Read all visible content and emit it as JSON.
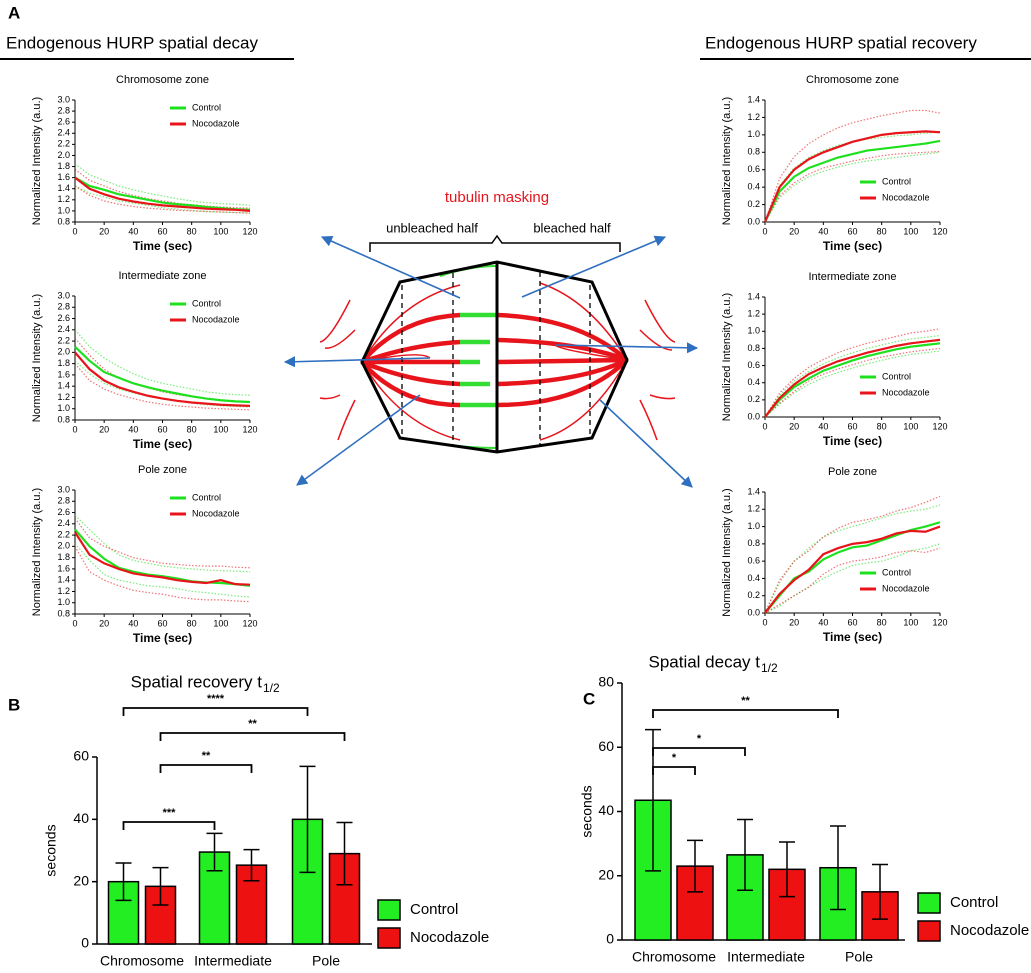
{
  "figure": {
    "panels": [
      "A",
      "B",
      "C"
    ],
    "headers": [
      "Endogenous HURP spatial decay",
      "Endogenous HURP spatial recovery"
    ],
    "diagram": {
      "title": "tubulin masking",
      "left": "unbleached half",
      "right": "bleached half"
    }
  },
  "chart_data": [
    {
      "type": "line",
      "title": "Chromosome zone",
      "xlabel": "Time (sec)",
      "ylabel": "Normalized Intensity (a.u.)",
      "legend": "upper right",
      "xlim": [
        0,
        120
      ],
      "xticks": [
        0,
        20,
        40,
        60,
        80,
        100,
        120
      ],
      "ylim": [
        0.8,
        3.0
      ],
      "yticks": [
        0.8,
        {
          "value": 1.0,
          "label": "1.0"
        },
        1.2,
        1.4,
        1.6,
        1.8,
        {
          "value": 2.0,
          "label": "2.0"
        },
        2.2,
        2.4,
        2.6,
        2.8,
        {
          "value": 3.0,
          "label": "3.0"
        }
      ],
      "x": [
        0,
        10,
        20,
        30,
        40,
        50,
        60,
        70,
        80,
        90,
        100,
        110,
        120
      ],
      "series": [
        {
          "name": "Control",
          "color": "#1ee01e",
          "values": [
            1.6,
            1.45,
            1.38,
            1.3,
            1.25,
            1.2,
            1.15,
            1.12,
            1.1,
            1.07,
            1.05,
            1.03,
            1.02
          ],
          "upper": [
            1.85,
            1.65,
            1.55,
            1.45,
            1.38,
            1.32,
            1.27,
            1.22,
            1.18,
            1.15,
            1.13,
            1.12,
            1.1
          ],
          "lower": [
            1.45,
            1.32,
            1.25,
            1.18,
            1.14,
            1.1,
            1.06,
            1.03,
            1.01,
            0.99,
            0.98,
            0.97,
            0.96
          ]
        },
        {
          "name": "Nocodazole",
          "color": "#e8141b",
          "values": [
            1.6,
            1.4,
            1.3,
            1.22,
            1.17,
            1.13,
            1.1,
            1.08,
            1.06,
            1.04,
            1.03,
            1.02,
            1.0
          ],
          "upper": [
            1.75,
            1.55,
            1.45,
            1.35,
            1.28,
            1.22,
            1.18,
            1.14,
            1.11,
            1.09,
            1.07,
            1.06,
            1.05
          ],
          "lower": [
            1.45,
            1.28,
            1.18,
            1.12,
            1.08,
            1.05,
            1.03,
            1.01,
            1.0,
            0.99,
            0.98,
            0.97,
            0.96
          ]
        }
      ]
    },
    {
      "type": "line",
      "title": "Intermediate zone",
      "xlabel": "Time (sec)",
      "ylabel": "Normalized Intensity (a.u.)",
      "legend": "upper right",
      "xlim": [
        0,
        120
      ],
      "xticks": [
        0,
        20,
        40,
        60,
        80,
        100,
        120
      ],
      "ylim": [
        0.8,
        3.0
      ],
      "yticks": [
        0.8,
        {
          "value": 1.0,
          "label": "1.0"
        },
        1.2,
        1.4,
        1.6,
        1.8,
        {
          "value": 2.0,
          "label": "2.0"
        },
        2.2,
        2.4,
        2.6,
        2.8,
        {
          "value": 3.0,
          "label": "3.0"
        }
      ],
      "x": [
        0,
        10,
        20,
        30,
        40,
        50,
        60,
        70,
        80,
        90,
        100,
        110,
        120
      ],
      "series": [
        {
          "name": "Control",
          "color": "#1ee01e",
          "values": [
            2.1,
            1.85,
            1.65,
            1.55,
            1.45,
            1.38,
            1.32,
            1.27,
            1.22,
            1.18,
            1.15,
            1.13,
            1.12
          ],
          "upper": [
            2.4,
            2.1,
            1.9,
            1.75,
            1.62,
            1.52,
            1.45,
            1.4,
            1.35,
            1.3,
            1.27,
            1.25,
            1.24
          ],
          "lower": [
            1.85,
            1.62,
            1.45,
            1.35,
            1.28,
            1.22,
            1.18,
            1.14,
            1.1,
            1.07,
            1.05,
            1.04,
            1.03
          ]
        },
        {
          "name": "Nocodazole",
          "color": "#e8141b",
          "values": [
            2.0,
            1.7,
            1.5,
            1.38,
            1.3,
            1.23,
            1.18,
            1.14,
            1.11,
            1.09,
            1.07,
            1.06,
            1.05
          ],
          "upper": [
            2.25,
            1.95,
            1.7,
            1.55,
            1.45,
            1.37,
            1.3,
            1.25,
            1.21,
            1.18,
            1.15,
            1.13,
            1.12
          ],
          "lower": [
            1.8,
            1.5,
            1.35,
            1.25,
            1.18,
            1.12,
            1.08,
            1.05,
            1.03,
            1.01,
            1.0,
            0.99,
            0.98
          ]
        }
      ]
    },
    {
      "type": "line",
      "title": "Pole zone",
      "xlabel": "Time (sec)",
      "ylabel": "Normalized Intensity (a.u.)",
      "legend": "upper right",
      "xlim": [
        0,
        120
      ],
      "xticks": [
        0,
        20,
        40,
        60,
        80,
        100,
        120
      ],
      "ylim": [
        0.8,
        3.0
      ],
      "yticks": [
        0.8,
        {
          "value": 1.0,
          "label": "1.0"
        },
        1.2,
        1.4,
        1.6,
        1.8,
        {
          "value": 2.0,
          "label": "2.0"
        },
        2.2,
        2.4,
        2.6,
        2.8,
        {
          "value": 3.0,
          "label": "3.0"
        }
      ],
      "x": [
        0,
        10,
        20,
        30,
        40,
        50,
        60,
        70,
        80,
        90,
        100,
        110,
        120
      ],
      "series": [
        {
          "name": "Control",
          "color": "#1ee01e",
          "values": [
            2.3,
            2.0,
            1.78,
            1.62,
            1.55,
            1.5,
            1.47,
            1.43,
            1.38,
            1.36,
            1.35,
            1.33,
            1.3
          ],
          "upper": [
            2.55,
            2.3,
            2.05,
            1.85,
            1.75,
            1.7,
            1.65,
            1.62,
            1.6,
            1.58,
            1.57,
            1.56,
            1.55
          ],
          "lower": [
            2.05,
            1.75,
            1.5,
            1.4,
            1.35,
            1.3,
            1.28,
            1.25,
            1.2,
            1.18,
            1.15,
            1.12,
            1.1
          ]
        },
        {
          "name": "Nocodazole",
          "color": "#e8141b",
          "values": [
            2.25,
            1.85,
            1.7,
            1.6,
            1.52,
            1.48,
            1.45,
            1.4,
            1.37,
            1.35,
            1.4,
            1.33,
            1.32
          ],
          "upper": [
            2.5,
            2.15,
            2.0,
            1.9,
            1.8,
            1.75,
            1.7,
            1.68,
            1.66,
            1.65,
            1.65,
            1.63,
            1.62
          ],
          "lower": [
            2.0,
            1.55,
            1.4,
            1.3,
            1.22,
            1.18,
            1.15,
            1.1,
            1.07,
            1.05,
            1.05,
            1.03,
            1.02
          ]
        }
      ]
    },
    {
      "type": "line",
      "title": "Chromosome zone",
      "xlabel": "Time (sec)",
      "ylabel": "Normalized Intensity (a.u.)",
      "legend": "lower right",
      "xlim": [
        0,
        120
      ],
      "xticks": [
        0,
        20,
        40,
        60,
        80,
        100,
        120
      ],
      "ylim": [
        0,
        1.4
      ],
      "yticks": [
        {
          "value": 0,
          "label": "0.0"
        },
        0.2,
        0.4,
        0.6,
        0.8,
        {
          "value": 1,
          "label": "1.0"
        },
        1.2,
        1.4
      ],
      "x": [
        0,
        10,
        20,
        30,
        40,
        50,
        60,
        70,
        80,
        90,
        100,
        110,
        120
      ],
      "series": [
        {
          "name": "Control",
          "color": "#1ee01e",
          "values": [
            0,
            0.35,
            0.52,
            0.62,
            0.68,
            0.74,
            0.78,
            0.82,
            0.84,
            0.86,
            0.88,
            0.9,
            0.93
          ],
          "upper": [
            0,
            0.42,
            0.62,
            0.74,
            0.82,
            0.88,
            0.92,
            0.95,
            0.97,
            0.99,
            1.0,
            1.02,
            1.03
          ],
          "lower": [
            0,
            0.28,
            0.42,
            0.52,
            0.58,
            0.63,
            0.67,
            0.7,
            0.72,
            0.74,
            0.76,
            0.78,
            0.8
          ]
        },
        {
          "name": "Nocodazole",
          "color": "#e8141b",
          "values": [
            0,
            0.4,
            0.6,
            0.72,
            0.8,
            0.86,
            0.92,
            0.96,
            1.0,
            1.02,
            1.03,
            1.04,
            1.03
          ],
          "upper": [
            0,
            0.5,
            0.75,
            0.9,
            1.0,
            1.08,
            1.14,
            1.18,
            1.22,
            1.25,
            1.28,
            1.28,
            1.25
          ],
          "lower": [
            0,
            0.3,
            0.45,
            0.55,
            0.62,
            0.66,
            0.7,
            0.73,
            0.76,
            0.78,
            0.79,
            0.8,
            0.81
          ]
        }
      ]
    },
    {
      "type": "line",
      "title": "Intermediate zone",
      "xlabel": "Time (sec)",
      "ylabel": "Normalized Intensity (a.u.)",
      "legend": "lower right",
      "xlim": [
        0,
        120
      ],
      "xticks": [
        0,
        20,
        40,
        60,
        80,
        100,
        120
      ],
      "ylim": [
        0,
        1.4
      ],
      "yticks": [
        {
          "value": 0,
          "label": "0.0"
        },
        0.2,
        0.4,
        0.6,
        0.8,
        {
          "value": 1,
          "label": "1.0"
        },
        1.2,
        1.4
      ],
      "x": [
        0,
        10,
        20,
        30,
        40,
        50,
        60,
        70,
        80,
        90,
        100,
        110,
        120
      ],
      "series": [
        {
          "name": "Control",
          "color": "#1ee01e",
          "values": [
            0,
            0.2,
            0.35,
            0.45,
            0.54,
            0.6,
            0.66,
            0.71,
            0.75,
            0.79,
            0.82,
            0.84,
            0.86
          ],
          "upper": [
            0,
            0.25,
            0.42,
            0.53,
            0.62,
            0.69,
            0.75,
            0.8,
            0.84,
            0.88,
            0.91,
            0.93,
            0.95
          ],
          "lower": [
            0,
            0.15,
            0.28,
            0.38,
            0.46,
            0.52,
            0.57,
            0.62,
            0.66,
            0.7,
            0.73,
            0.75,
            0.77
          ]
        },
        {
          "name": "Nocodazole",
          "color": "#e8141b",
          "values": [
            0,
            0.22,
            0.38,
            0.5,
            0.58,
            0.65,
            0.7,
            0.75,
            0.79,
            0.83,
            0.86,
            0.88,
            0.9
          ],
          "upper": [
            0,
            0.28,
            0.45,
            0.58,
            0.67,
            0.75,
            0.81,
            0.86,
            0.9,
            0.94,
            0.98,
            1.0,
            1.03
          ],
          "lower": [
            0,
            0.16,
            0.3,
            0.42,
            0.5,
            0.56,
            0.61,
            0.66,
            0.7,
            0.73,
            0.76,
            0.78,
            0.8
          ]
        }
      ]
    },
    {
      "type": "line",
      "title": "Pole zone",
      "xlabel": "Time (sec)",
      "ylabel": "Normalized Intensity (a.u.)",
      "legend": "lower right",
      "xlim": [
        0,
        120
      ],
      "xticks": [
        0,
        20,
        40,
        60,
        80,
        100,
        120
      ],
      "ylim": [
        0,
        1.4
      ],
      "yticks": [
        {
          "value": 0,
          "label": "0.0"
        },
        0.2,
        0.4,
        0.6,
        0.8,
        {
          "value": 1,
          "label": "1.0"
        },
        1.2,
        1.4
      ],
      "x": [
        0,
        10,
        20,
        30,
        40,
        50,
        60,
        70,
        80,
        90,
        100,
        110,
        120
      ],
      "series": [
        {
          "name": "Control",
          "color": "#1ee01e",
          "values": [
            0,
            0.2,
            0.4,
            0.48,
            0.62,
            0.7,
            0.76,
            0.78,
            0.84,
            0.9,
            0.96,
            1.0,
            1.05
          ],
          "upper": [
            0,
            0.35,
            0.6,
            0.75,
            0.88,
            0.95,
            1.0,
            1.05,
            1.1,
            1.15,
            1.18,
            1.2,
            1.25
          ],
          "lower": [
            0,
            0.08,
            0.2,
            0.3,
            0.4,
            0.48,
            0.55,
            0.58,
            0.6,
            0.65,
            0.72,
            0.75,
            0.8
          ]
        },
        {
          "name": "Nocodazole",
          "color": "#e8141b",
          "values": [
            0,
            0.22,
            0.38,
            0.5,
            0.68,
            0.75,
            0.8,
            0.82,
            0.86,
            0.92,
            0.95,
            0.94,
            1.0
          ],
          "upper": [
            0,
            0.38,
            0.6,
            0.72,
            0.88,
            0.98,
            1.05,
            1.08,
            1.12,
            1.18,
            1.22,
            1.28,
            1.35
          ],
          "lower": [
            0,
            0.1,
            0.2,
            0.3,
            0.45,
            0.55,
            0.6,
            0.62,
            0.65,
            0.7,
            0.72,
            0.7,
            0.75
          ]
        }
      ]
    },
    {
      "type": "bar",
      "title": "Spatial recovery t",
      "title_subscript": "1/2",
      "ylabel": "seconds",
      "legend": "lower right",
      "categories": [
        "Chromosome",
        "Intermediate",
        "Pole"
      ],
      "ylim": [
        0,
        60
      ],
      "yticks": [
        0,
        20,
        40,
        60
      ],
      "series": [
        {
          "name": "Control",
          "color": "#22ee22",
          "values": [
            20,
            29.5,
            40
          ],
          "errors": [
            6,
            6,
            17
          ]
        },
        {
          "name": "Nocodazole",
          "color": "#ee1111",
          "values": [
            18.5,
            25.3,
            29
          ],
          "errors": [
            6,
            5,
            10
          ]
        }
      ],
      "brackets": [
        {
          "label": "****",
          "from": [
            0,
            0
          ],
          "to": [
            2,
            0
          ]
        },
        {
          "label": "**",
          "from": [
            0,
            1
          ],
          "to": [
            2,
            1
          ]
        },
        {
          "label": "**",
          "from": [
            0,
            1
          ],
          "to": [
            1,
            1
          ]
        },
        {
          "label": "***",
          "from": [
            0,
            0
          ],
          "to": [
            1,
            0
          ]
        }
      ]
    },
    {
      "type": "bar",
      "title": "Spatial decay t",
      "title_subscript": "1/2",
      "ylabel": "seconds",
      "legend": "lower right",
      "categories": [
        "Chromosome",
        "Intermediate",
        "Pole"
      ],
      "ylim": [
        0,
        80
      ],
      "yticks": [
        0,
        20,
        40,
        60,
        80
      ],
      "series": [
        {
          "name": "Control",
          "color": "#22ee22",
          "values": [
            43.5,
            26.5,
            22.5
          ],
          "errors": [
            22,
            11,
            13
          ]
        },
        {
          "name": "Nocodazole",
          "color": "#ee1111",
          "values": [
            23,
            22,
            15
          ],
          "errors": [
            8,
            8.5,
            8.5
          ]
        }
      ],
      "brackets": [
        {
          "label": "**",
          "from": [
            0,
            0
          ],
          "to": [
            2,
            0
          ]
        },
        {
          "label": "*",
          "from": [
            0,
            0
          ],
          "to": [
            1,
            0
          ]
        },
        {
          "label": "*",
          "from": [
            0,
            0
          ],
          "to": [
            0,
            1
          ]
        }
      ]
    }
  ]
}
